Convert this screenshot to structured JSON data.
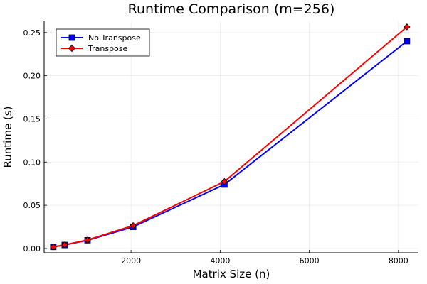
{
  "chart_data": {
    "type": "line",
    "title": "Runtime Comparison (m=256)",
    "xlabel": "Matrix Size (n)",
    "ylabel": "Runtime (s)",
    "xlim": [
      50,
      8450
    ],
    "ylim": [
      -0.005,
      0.263
    ],
    "xticks": [
      2000,
      4000,
      6000,
      8000
    ],
    "xtick_labels": [
      "2000",
      "4000",
      "6000",
      "8000"
    ],
    "yticks": [
      0,
      0.05,
      0.1,
      0.15,
      0.2,
      0.25
    ],
    "ytick_labels": [
      "0.00",
      "0.05",
      "0.10",
      "0.15",
      "0.20",
      "0.25"
    ],
    "grid": true,
    "legend_position": "top-left",
    "series": [
      {
        "name": "No Transpose",
        "color": "#0000ff",
        "marker": "square",
        "x": [
          256,
          512,
          1024,
          2048,
          4096,
          8192
        ],
        "y": [
          0.0018,
          0.004,
          0.0095,
          0.025,
          0.074,
          0.24
        ]
      },
      {
        "name": "Transpose",
        "color": "#ff0000",
        "marker": "diamond",
        "x": [
          256,
          512,
          1024,
          2048,
          4096,
          8192
        ],
        "y": [
          0.0018,
          0.0042,
          0.0098,
          0.0265,
          0.0775,
          0.2565
        ]
      }
    ]
  }
}
